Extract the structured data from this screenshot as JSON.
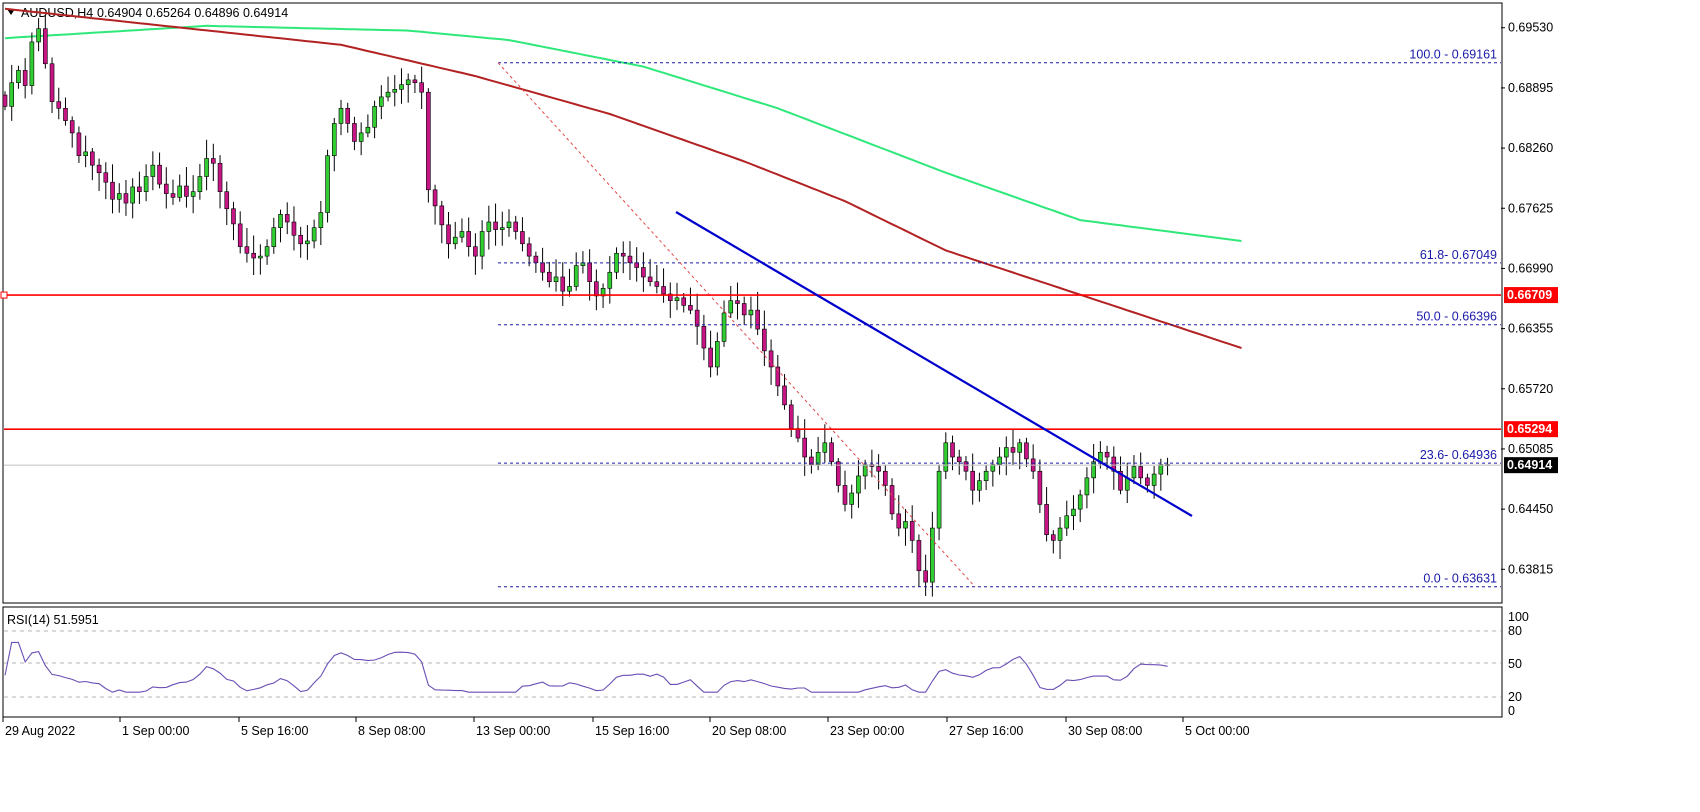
{
  "header": {
    "symbol": "AUDUSD,H4",
    "ohlc": "0.64904 0.65264 0.64896 0.64914"
  },
  "price_axis": {
    "ticks": [
      "0.69530",
      "0.68895",
      "0.68260",
      "0.67625",
      "0.66990",
      "0.66355",
      "0.65720",
      "0.65085",
      "0.64450",
      "0.63815"
    ],
    "tags": [
      {
        "label": "0.66709",
        "kind": "level"
      },
      {
        "label": "0.65294",
        "kind": "level"
      },
      {
        "label": "0.64914",
        "kind": "current"
      }
    ]
  },
  "rsi": {
    "label": "RSI(14) 51.5951",
    "ticks": [
      "100",
      "80",
      "50",
      "20",
      "0"
    ]
  },
  "time_axis": {
    "labels": [
      "29 Aug 2022",
      "1 Sep 00:00",
      "5 Sep 16:00",
      "8 Sep 08:00",
      "13 Sep 00:00",
      "15 Sep 16:00",
      "20 Sep 08:00",
      "23 Sep 00:00",
      "27 Sep 16:00",
      "30 Sep 08:00",
      "5 Oct 00:00"
    ]
  },
  "fibonacci": [
    {
      "label": "100.0 - 0.69161"
    },
    {
      "label": "61.8- 0.67049"
    },
    {
      "label": "50.0 - 0.66396"
    },
    {
      "label": "23.6- 0.64936"
    },
    {
      "label": "0.0 - 0.63631"
    }
  ],
  "colors": {
    "bull": "#32cd32",
    "bear": "#c71585",
    "sma_fast": "#b22222",
    "sma_slow": "#2ee87a",
    "level_line": "#ff0000",
    "trendline": "#0000cd",
    "fib": "#1a1aa8",
    "rsi": "#6a4fb5"
  },
  "chart_data": {
    "type": "candlestick",
    "symbol": "AUDUSD",
    "timeframe": "H4",
    "ylim": [
      0.6363,
      0.6977
    ],
    "levels": [
      0.66709,
      0.65294
    ],
    "current_price": 0.64914,
    "fib_levels": [
      {
        "ratio": 100.0,
        "price": 0.69161
      },
      {
        "ratio": 61.8,
        "price": 0.67049
      },
      {
        "ratio": 50.0,
        "price": 0.66396
      },
      {
        "ratio": 23.6,
        "price": 0.64936
      },
      {
        "ratio": 0.0,
        "price": 0.63631
      }
    ],
    "close_path": [
      0.687,
      0.6895,
      0.6908,
      0.6892,
      0.6938,
      0.6952,
      0.6915,
      0.6875,
      0.6868,
      0.6855,
      0.6842,
      0.6818,
      0.6822,
      0.6808,
      0.68,
      0.679,
      0.6772,
      0.6778,
      0.6768,
      0.6785,
      0.678,
      0.6796,
      0.6808,
      0.6788,
      0.6778,
      0.6774,
      0.6786,
      0.6775,
      0.678,
      0.6796,
      0.6815,
      0.681,
      0.678,
      0.6762,
      0.6746,
      0.6722,
      0.6715,
      0.671,
      0.6712,
      0.6722,
      0.6742,
      0.6756,
      0.6748,
      0.6734,
      0.6725,
      0.6728,
      0.6742,
      0.6758,
      0.6818,
      0.6852,
      0.6868,
      0.6852,
      0.6833,
      0.6842,
      0.6848,
      0.687,
      0.688,
      0.6885,
      0.6888,
      0.6893,
      0.6898,
      0.6895,
      0.6885,
      0.6782,
      0.6765,
      0.6745,
      0.6725,
      0.6732,
      0.6738,
      0.6722,
      0.6712,
      0.6738,
      0.6748,
      0.674,
      0.6742,
      0.6748,
      0.6738,
      0.6725,
      0.6712,
      0.6705,
      0.6695,
      0.6685,
      0.669,
      0.6675,
      0.668,
      0.6702,
      0.6705,
      0.6685,
      0.667,
      0.6678,
      0.6695,
      0.6715,
      0.6712,
      0.6705,
      0.67,
      0.669,
      0.6685,
      0.668,
      0.6672,
      0.6665,
      0.6668,
      0.666,
      0.6655,
      0.6638,
      0.6615,
      0.6595,
      0.6622,
      0.6652,
      0.6665,
      0.6662,
      0.665,
      0.6655,
      0.6635,
      0.6612,
      0.6595,
      0.6575,
      0.6555,
      0.653,
      0.652,
      0.65,
      0.6492,
      0.6505,
      0.6515,
      0.6495,
      0.647,
      0.645,
      0.6462,
      0.648,
      0.6492,
      0.649,
      0.6485,
      0.647,
      0.644,
      0.6425,
      0.6432,
      0.6412,
      0.638,
      0.6368,
      0.6425,
      0.6485,
      0.6515,
      0.65,
      0.6495,
      0.6485,
      0.6465,
      0.6475,
      0.6485,
      0.6492,
      0.65,
      0.651,
      0.6505,
      0.6515,
      0.6498,
      0.6485,
      0.645,
      0.6418,
      0.6412,
      0.6425,
      0.6438,
      0.6445,
      0.646,
      0.6478,
      0.6495,
      0.6505,
      0.65,
      0.6485,
      0.6465,
      0.6478,
      0.649,
      0.6478,
      0.647,
      0.6482,
      0.6492,
      0.6491
    ]
  }
}
